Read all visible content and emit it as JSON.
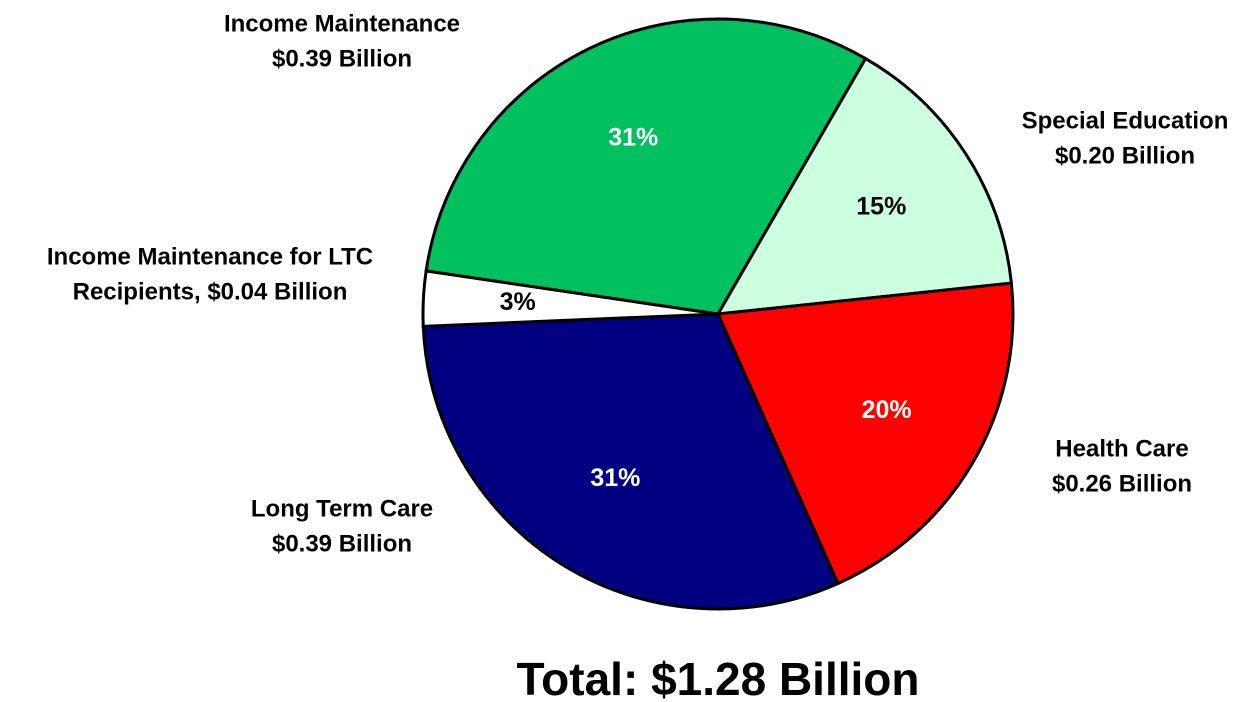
{
  "chart_data": {
    "type": "pie",
    "title": "Total: $1.28 Billion",
    "labels": [
      [
        "Special Education",
        "$0.20 Billion"
      ],
      [
        "Health Care",
        "$0.26 Billion"
      ],
      [
        "Long Term Care",
        "$0.39 Billion"
      ],
      [
        "Income Maintenance for LTC",
        "Recipients, $0.04 Billion"
      ],
      [
        "Income Maintenance",
        "$0.39 Billion"
      ]
    ],
    "values": [
      15,
      20,
      31,
      3,
      31
    ],
    "value_labels": [
      "15%",
      "20%",
      "31%",
      "3%",
      "31%"
    ],
    "colors": [
      "#ccffe0",
      "#ff0000",
      "#000080",
      "#ffffff",
      "#00c060"
    ]
  }
}
